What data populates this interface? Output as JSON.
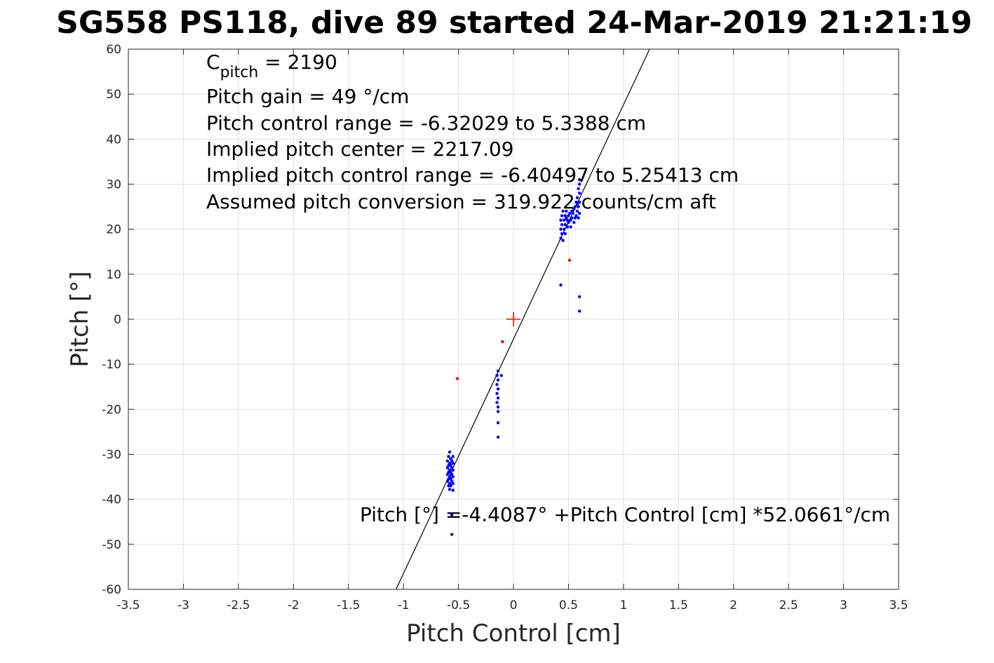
{
  "chart_data": {
    "type": "scatter",
    "title": "SG558 PS118, dive 89 started 24-Mar-2019 21:21:19",
    "xlabel": "Pitch Control [cm]",
    "ylabel": "Pitch [°]",
    "xlim": [
      -3.5,
      3.5
    ],
    "ylim": [
      -60,
      60
    ],
    "xticks": [
      -3.5,
      -3,
      -2.5,
      -2,
      -1.5,
      -1,
      -0.5,
      0,
      0.5,
      1,
      1.5,
      2,
      2.5,
      3,
      3.5
    ],
    "yticks": [
      -60,
      -50,
      -40,
      -30,
      -20,
      -10,
      0,
      10,
      20,
      30,
      40,
      50,
      60
    ],
    "xtick_labels": [
      "-3.5",
      "-3",
      "-2.5",
      "-2",
      "-1.5",
      "-1",
      "-0.5",
      "0",
      "0.5",
      "1",
      "1.5",
      "2",
      "2.5",
      "3",
      "3.5"
    ],
    "ytick_labels": [
      "-60",
      "-50",
      "-40",
      "-30",
      "-20",
      "-10",
      "0",
      "10",
      "20",
      "30",
      "40",
      "50",
      "60"
    ],
    "grid": true,
    "colors": {
      "inliers": "#0000ff",
      "outliers": "#ff0000",
      "fit": "#000000",
      "center": "#ff0000"
    },
    "fit_line": {
      "intercept": -4.4087,
      "slope": 52.0661
    },
    "center_marker": {
      "x": 0,
      "y": 0
    },
    "annotations": {
      "cpitch_base": "C",
      "cpitch_sub": "pitch",
      "cpitch_value": " = 2190",
      "gain": "Pitch gain = 49 °/cm",
      "control_range": "Pitch control range = -6.32029 to 5.3388 cm",
      "implied_center": "Implied pitch center = 2217.09",
      "implied_range": "Implied pitch control range = -6.40497 to 5.25413 cm",
      "conversion": "Assumed pitch conversion = 319.922 counts/cm aft",
      "fit_equation": "Pitch [°] =-4.4087° +Pitch Control [cm] *52.0661°/cm"
    },
    "series": [
      {
        "points": [
          [
            -0.58,
            -29.5
          ],
          [
            -0.59,
            -30.5
          ],
          [
            -0.55,
            -30.5
          ],
          [
            -0.57,
            -31
          ],
          [
            -0.6,
            -31.5
          ],
          [
            -0.56,
            -31.5
          ],
          [
            -0.58,
            -32
          ],
          [
            -0.55,
            -32
          ],
          [
            -0.59,
            -32.5
          ],
          [
            -0.57,
            -32.5
          ],
          [
            -0.6,
            -33
          ],
          [
            -0.56,
            -33
          ],
          [
            -0.58,
            -33.5
          ],
          [
            -0.55,
            -33.5
          ],
          [
            -0.59,
            -34
          ],
          [
            -0.57,
            -34
          ],
          [
            -0.6,
            -34.5
          ],
          [
            -0.56,
            -34.5
          ],
          [
            -0.58,
            -35
          ],
          [
            -0.55,
            -35
          ],
          [
            -0.59,
            -35.5
          ],
          [
            -0.57,
            -35.5
          ],
          [
            -0.6,
            -36
          ],
          [
            -0.56,
            -36
          ],
          [
            -0.58,
            -36.5
          ],
          [
            -0.55,
            -36.5
          ],
          [
            -0.59,
            -37
          ],
          [
            -0.57,
            -37
          ],
          [
            -0.58,
            -37.8
          ],
          [
            -0.55,
            -38
          ],
          [
            -0.56,
            -43.5
          ],
          [
            -0.56,
            -47.8
          ],
          [
            -0.14,
            -11.5
          ],
          [
            -0.15,
            -12.5
          ],
          [
            -0.11,
            -12.5
          ],
          [
            -0.14,
            -13.5
          ],
          [
            -0.15,
            -14.5
          ],
          [
            -0.14,
            -15.5
          ],
          [
            -0.15,
            -16.5
          ],
          [
            -0.14,
            -17.5
          ],
          [
            -0.15,
            -18.5
          ],
          [
            -0.14,
            -19.5
          ],
          [
            -0.14,
            -20.5
          ],
          [
            -0.14,
            -23
          ],
          [
            -0.14,
            -26.2
          ],
          [
            0.43,
            7.6
          ],
          [
            0.6,
            5.0
          ],
          [
            0.6,
            1.8
          ],
          [
            0.43,
            18
          ],
          [
            0.45,
            17.5
          ],
          [
            0.44,
            19
          ],
          [
            0.47,
            19
          ],
          [
            0.43,
            20
          ],
          [
            0.46,
            20
          ],
          [
            0.49,
            20.5
          ],
          [
            0.44,
            21
          ],
          [
            0.47,
            21
          ],
          [
            0.5,
            21.5
          ],
          [
            0.43,
            22
          ],
          [
            0.46,
            22
          ],
          [
            0.49,
            22
          ],
          [
            0.52,
            22
          ],
          [
            0.44,
            23
          ],
          [
            0.47,
            23
          ],
          [
            0.5,
            23
          ],
          [
            0.53,
            22.5
          ],
          [
            0.56,
            22.5
          ],
          [
            0.45,
            24
          ],
          [
            0.48,
            24
          ],
          [
            0.51,
            23.5
          ],
          [
            0.54,
            23.5
          ],
          [
            0.57,
            23
          ],
          [
            0.59,
            22.5
          ],
          [
            0.55,
            24.5
          ],
          [
            0.58,
            24
          ],
          [
            0.6,
            23.5
          ],
          [
            0.56,
            25
          ],
          [
            0.59,
            25
          ],
          [
            0.57,
            26
          ],
          [
            0.6,
            26
          ],
          [
            0.58,
            27
          ],
          [
            0.6,
            28
          ],
          [
            0.59,
            29
          ],
          [
            0.6,
            30
          ],
          [
            0.6,
            31
          ],
          [
            0.58,
            25.5
          ],
          [
            0.55,
            21.5
          ],
          [
            0.52,
            20.5
          ],
          [
            0.53,
            24
          ],
          [
            0.48,
            22.5
          ]
        ]
      },
      {
        "points": [
          [
            -0.51,
            -13.2
          ],
          [
            0.51,
            13.1
          ],
          [
            -0.1,
            -5.0
          ]
        ]
      }
    ]
  }
}
